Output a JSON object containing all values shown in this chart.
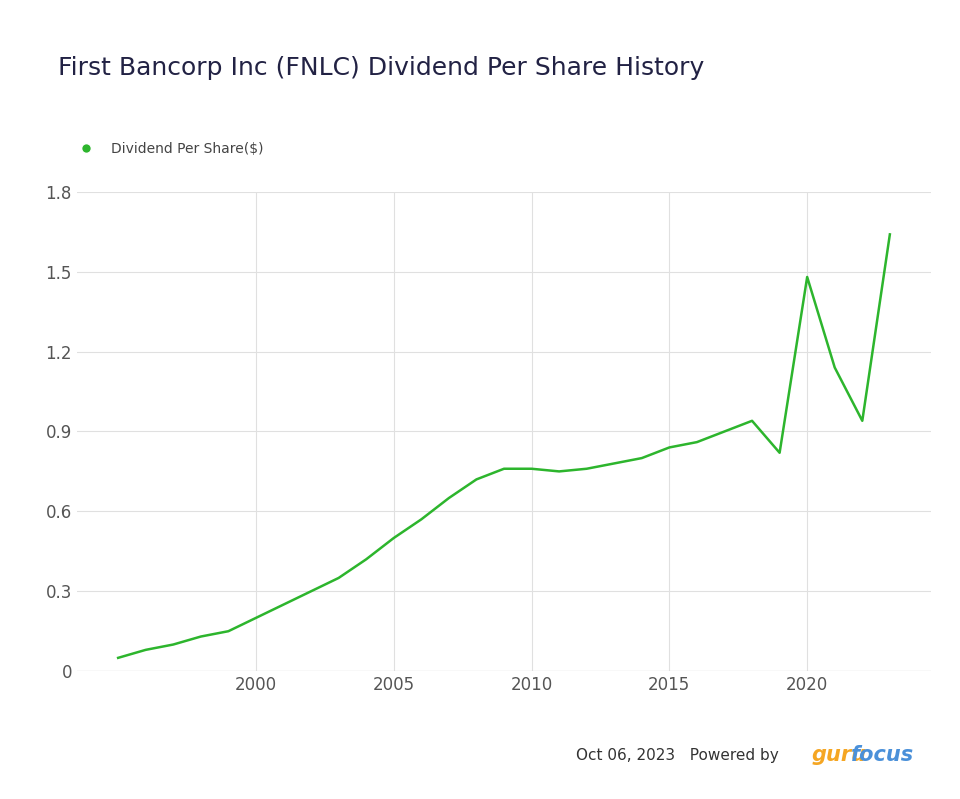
{
  "title": "First Bancorp Inc (FNLC) Dividend Per Share History",
  "legend_label": "Dividend Per Share($)",
  "line_color": "#2db52d",
  "background_color": "#ffffff",
  "plot_bg_color": "#ffffff",
  "grid_color": "#e0e0e0",
  "title_color": "#222244",
  "years": [
    1995,
    1996,
    1997,
    1998,
    1999,
    2000,
    2001,
    2002,
    2003,
    2004,
    2005,
    2006,
    2007,
    2008,
    2009,
    2010,
    2011,
    2012,
    2013,
    2014,
    2015,
    2016,
    2017,
    2018,
    2019,
    2020,
    2021,
    2022,
    2023
  ],
  "values": [
    0.05,
    0.08,
    0.1,
    0.13,
    0.15,
    0.2,
    0.25,
    0.3,
    0.35,
    0.42,
    0.5,
    0.57,
    0.65,
    0.72,
    0.76,
    0.76,
    0.75,
    0.76,
    0.78,
    0.8,
    0.84,
    0.86,
    0.9,
    0.94,
    0.82,
    1.48,
    1.14,
    0.94,
    1.64
  ],
  "ylim": [
    0,
    1.8
  ],
  "yticks": [
    0,
    0.3,
    0.6,
    0.9,
    1.2,
    1.5,
    1.8
  ],
  "xlim": [
    1993.5,
    2024.5
  ],
  "xticks": [
    2000,
    2005,
    2010,
    2015,
    2020
  ],
  "title_fontsize": 18,
  "legend_fontsize": 10,
  "tick_fontsize": 12,
  "line_width": 1.8,
  "dot_color": "#2db52d",
  "footer_text": "Oct 06, 2023   Powered by ",
  "footer_color": "#333333",
  "guru_color": "#f5a623",
  "focus_color": "#4a90d9"
}
